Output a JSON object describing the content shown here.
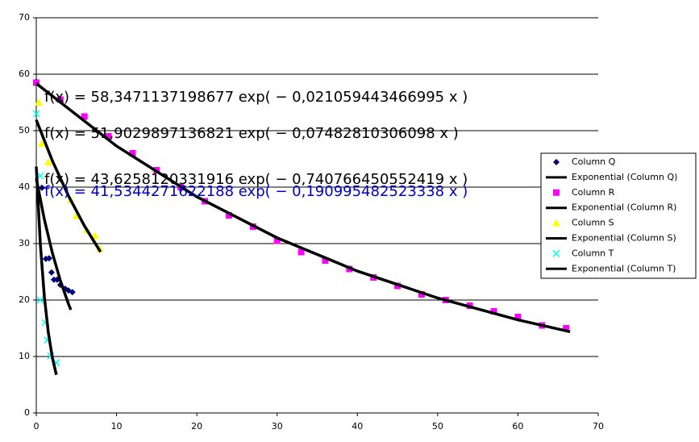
{
  "chart_data": {
    "type": "scatter",
    "xlim": [
      0,
      70
    ],
    "xticks": [
      0,
      10,
      20,
      30,
      40,
      50,
      60,
      70
    ],
    "ylim": [
      0,
      70
    ],
    "yticks": [
      0,
      10,
      20,
      30,
      40,
      50,
      60,
      70
    ],
    "grid": true,
    "legend": "right",
    "series": [
      {
        "name": "Column Q",
        "kind": "markers",
        "marker": "diamond",
        "color": "#000080",
        "x": [
          0,
          0.7,
          1.2,
          1.6,
          1.9,
          2.2,
          2.6,
          3,
          3.6,
          4,
          4.5
        ],
        "values": [
          58.7,
          39.9,
          27.3,
          27.4,
          24.9,
          23.6,
          23.6,
          22.7,
          22,
          21.7,
          21.4
        ]
      },
      {
        "name": "Exponential (Column Q)",
        "kind": "line",
        "color": "#000000",
        "x": [
          0,
          1,
          2,
          3,
          4,
          4.3
        ],
        "values": [
          41.53,
          34.32,
          28.36,
          23.43,
          19.36,
          18.27
        ]
      },
      {
        "name": "Column R",
        "kind": "markers",
        "marker": "square",
        "color": "#ff00ff",
        "x": [
          0,
          3,
          6,
          9,
          12,
          15,
          18,
          21,
          24,
          27,
          30,
          33,
          36,
          39,
          42,
          45,
          48,
          51,
          54,
          57,
          60,
          63,
          66
        ],
        "values": [
          58.5,
          55.5,
          52.5,
          49,
          46,
          43,
          40,
          37.5,
          35,
          33,
          30.5,
          28.5,
          27,
          25.5,
          24,
          22.5,
          21,
          20,
          19,
          18,
          17,
          15.5,
          15
        ]
      },
      {
        "name": "Exponential (Column R)",
        "kind": "line",
        "color": "#000000",
        "x": [
          0,
          10,
          20,
          30,
          40,
          50,
          60,
          66.5
        ],
        "values": [
          58.35,
          47.27,
          38.29,
          31.02,
          25.13,
          20.36,
          16.49,
          14.38
        ]
      },
      {
        "name": "Column S",
        "kind": "markers",
        "marker": "triangle",
        "color": "#ffff00",
        "x": [
          0.3,
          0.7,
          1.5,
          4.3,
          5,
          6.3,
          7.3,
          7.9
        ],
        "values": [
          55,
          47.7,
          44.4,
          37.7,
          34.9,
          32.4,
          31.4,
          29.1
        ]
      },
      {
        "name": "Exponential (Column S)",
        "kind": "line",
        "color": "#000000",
        "x": [
          0,
          2,
          4,
          6,
          8
        ],
        "values": [
          51.9,
          44.69,
          38.48,
          33.13,
          28.53
        ]
      },
      {
        "name": "Column T",
        "kind": "markers",
        "marker": "x",
        "color": "#00ffff",
        "x": [
          0,
          0.5,
          0.5,
          1.1,
          1.4,
          1.8,
          2.5
        ],
        "values": [
          53,
          42,
          20,
          16,
          12.9,
          10.1,
          8.9
        ]
      },
      {
        "name": "Exponential (Column T)",
        "kind": "line",
        "color": "#000000",
        "x": [
          0,
          0.5,
          1,
          1.5,
          2,
          2.5
        ],
        "values": [
          43.63,
          30.04,
          20.69,
          14.25,
          9.81,
          6.76
        ]
      }
    ],
    "annotations": [
      {
        "text": "f(x) = 58,3471137198677 exp( − 0,021059443466995 x )",
        "color": "#000000"
      },
      {
        "text": "f(x) = 51,9029897136821 exp( − 0,07482810306098 x )",
        "color": "#000000"
      },
      {
        "text": "f(x) = 43,6258120331916 exp( − 0,740766450552419 x )",
        "color": "#000000"
      },
      {
        "text": "f(x) = 41,5344271622188 exp( − 0,190995482523338 x )",
        "color": "#0000cc"
      }
    ]
  }
}
